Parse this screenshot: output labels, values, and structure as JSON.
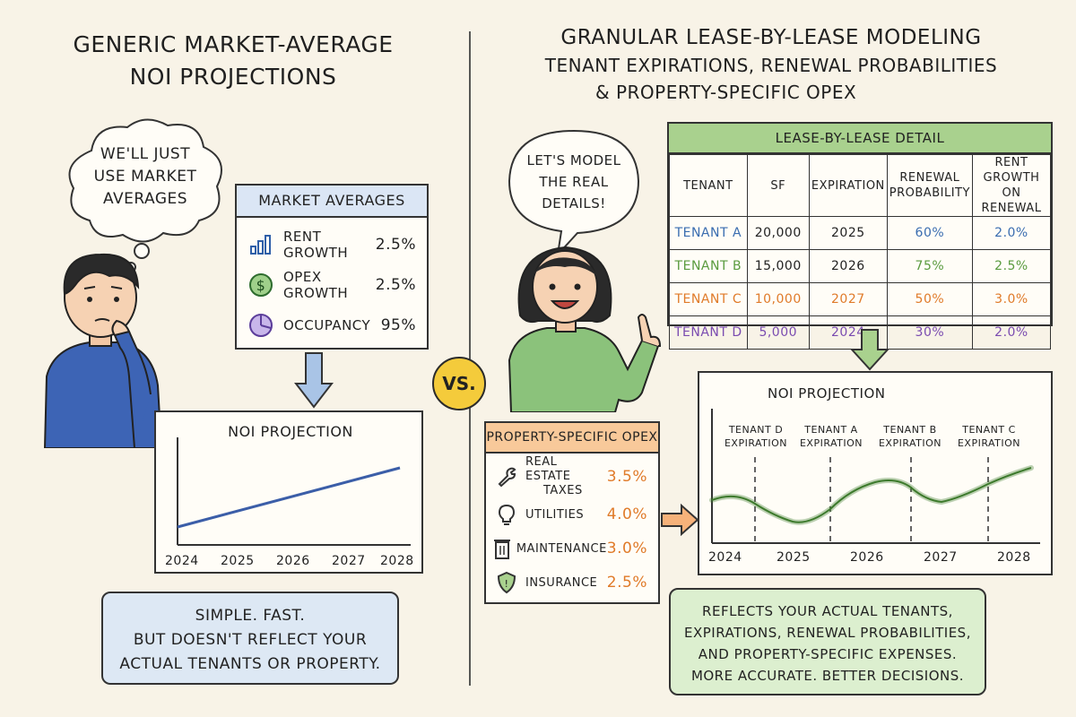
{
  "left": {
    "title_line1": "GENERIC MARKET-AVERAGE",
    "title_line2": "NOI PROJECTIONS",
    "thought": {
      "line1": "WE'LL JUST",
      "line2": "USE MARKET",
      "line3": "AVERAGES"
    },
    "market_averages": {
      "header": "MARKET AVERAGES",
      "items": [
        {
          "icon": "bar-chart-icon",
          "label": "RENT GROWTH",
          "value": "2.5%"
        },
        {
          "icon": "dollar-coin-icon",
          "label": "OPEX GROWTH",
          "value": "2.5%"
        },
        {
          "icon": "pie-chart-icon",
          "label": "OCCUPANCY",
          "value": "95%"
        }
      ]
    },
    "chart": {
      "title": "NOI PROJECTION",
      "x_ticks": [
        "2024",
        "2025",
        "2026",
        "2027",
        "2028"
      ]
    },
    "note": {
      "line1": "SIMPLE. FAST.",
      "line2": "BUT DOESN'T REFLECT YOUR",
      "line3": "ACTUAL TENANTS OR PROPERTY."
    }
  },
  "vs_label": "VS.",
  "right": {
    "title_line1": "GRANULAR LEASE-BY-LEASE MODELING",
    "title_line2": "TENANT EXPIRATIONS, RENEWAL PROBABILITIES",
    "title_line3": "& PROPERTY-SPECIFIC OPEX",
    "speech": {
      "line1": "LET'S MODEL",
      "line2": "THE REAL",
      "line3": "DETAILS!"
    },
    "lease_table": {
      "header": "LEASE-BY-LEASE DETAIL",
      "columns": [
        {
          "line1": "TENANT",
          "line2": ""
        },
        {
          "line1": "SF",
          "line2": ""
        },
        {
          "line1": "EXPIRATION",
          "line2": ""
        },
        {
          "line1": "RENEWAL",
          "line2": "PROBABILITY"
        },
        {
          "line1": "RENT GROWTH",
          "line2": "ON RENEWAL"
        }
      ],
      "rows": [
        {
          "tenant": "TENANT A",
          "sf": "20,000",
          "expiration": "2025",
          "renewal": "60%",
          "rent_growth": "2.0%",
          "color": "#3a6db0"
        },
        {
          "tenant": "TENANT B",
          "sf": "15,000",
          "expiration": "2026",
          "renewal": "75%",
          "rent_growth": "2.5%",
          "color": "#5a9b3f"
        },
        {
          "tenant": "TENANT C",
          "sf": "10,000",
          "expiration": "2027",
          "renewal": "50%",
          "rent_growth": "3.0%",
          "color": "#e07b2a"
        },
        {
          "tenant": "TENANT D",
          "sf": "5,000",
          "expiration": "2024",
          "renewal": "30%",
          "rent_growth": "2.0%",
          "color": "#7a4bb0"
        }
      ]
    },
    "opex": {
      "header": "PROPERTY-SPECIFIC OPEX",
      "items": [
        {
          "icon": "wrench-icon",
          "label_line1": "REAL ESTATE",
          "label_line2": "TAXES",
          "value": "3.5%"
        },
        {
          "icon": "lightbulb-icon",
          "label_line1": "UTILITIES",
          "label_line2": "",
          "value": "4.0%"
        },
        {
          "icon": "trash-can-icon",
          "label_line1": "MAINTENANCE",
          "label_line2": "",
          "value": "3.0%"
        },
        {
          "icon": "shield-icon",
          "label_line1": "INSURANCE",
          "label_line2": "",
          "value": "2.5%"
        }
      ]
    },
    "chart": {
      "title": "NOI PROJECTION",
      "x_ticks": [
        "2024",
        "2025",
        "2026",
        "2027",
        "2028"
      ],
      "events": [
        {
          "line1": "TENANT D",
          "line2": "EXPIRATION"
        },
        {
          "line1": "TENANT A",
          "line2": "EXPIRATION"
        },
        {
          "line1": "TENANT B",
          "line2": "EXPIRATION"
        },
        {
          "line1": "TENANT C",
          "line2": "EXPIRATION"
        }
      ]
    },
    "note": {
      "line1": "REFLECTS YOUR ACTUAL TENANTS,",
      "line2": "EXPIRATIONS, RENEWAL PROBABILITIES,",
      "line3": "AND PROPERTY-SPECIFIC EXPENSES.",
      "line4": "MORE ACCURATE. BETTER DECISIONS."
    }
  },
  "colors": {
    "background": "#f8f3e7",
    "market_header": "#dbe6f5",
    "lease_header": "#a9d18e",
    "opex_header": "#f8c99a",
    "left_note": "#dde8f4",
    "right_note": "#dcefcf",
    "vs_badge": "#f4cb3b",
    "arrow_blue": "#a9c4e6",
    "arrow_green": "#a9d18e",
    "arrow_orange": "#f6b27a"
  }
}
